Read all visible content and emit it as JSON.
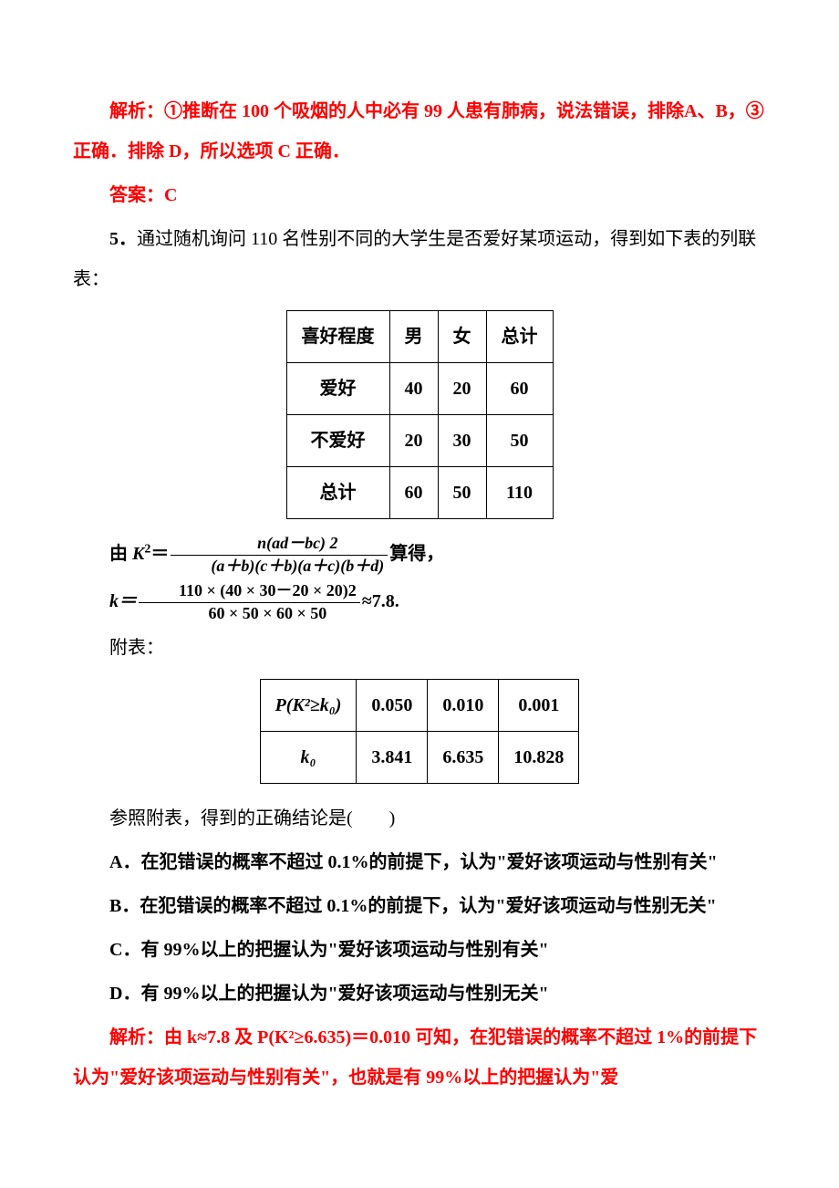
{
  "q4": {
    "explain_prefix": "解析：",
    "explain_text": "①推断在 100 个吸烟的人中必有 99 人患有肺病，说法错误，排除A、B，③正确．排除 D，所以选项 C 正确．",
    "answer_prefix": "答案：",
    "answer_text": "C"
  },
  "q5": {
    "label": "5．",
    "intro": "通过随机询问 110 名性别不同的大学生是否爱好某项运动，得到如下表的列联表：",
    "table1": {
      "rows": [
        [
          "喜好程度",
          "男",
          "女",
          "总计"
        ],
        [
          "爱好",
          "40",
          "20",
          "60"
        ],
        [
          "不爱好",
          "20",
          "30",
          "50"
        ],
        [
          "总计",
          "60",
          "50",
          "110"
        ]
      ]
    },
    "formula1": {
      "lead": "由 ",
      "k": "K",
      "sup2": "2",
      "eq": "＝",
      "num": "n(ad－bc)  2",
      "den": "(a＋b)(c＋b)(a＋c)(b＋d)",
      "tail": "算得，"
    },
    "formula2": {
      "lead": "k＝",
      "num": "110 × (40 × 30－20 × 20)2",
      "den": "60 × 50 × 60 × 50",
      "tail": "≈7.8."
    },
    "attach_label": "附表：",
    "table2": {
      "rows": [
        [
          "P(K²≥k₀)",
          "0.050",
          "0.010",
          "0.001"
        ],
        [
          "k₀",
          "3.841",
          "6.635",
          "10.828"
        ]
      ]
    },
    "prompt": "参照附表，得到的正确结论是(　　)",
    "options": {
      "A": "A．在犯错误的概率不超过 0.1%的前提下，认为\"爱好该项运动与性别有关\"",
      "B": "B．在犯错误的概率不超过 0.1%的前提下，认为\"爱好该项运动与性别无关\"",
      "C": "C．有 99%以上的把握认为\"爱好该项运动与性别有关\"",
      "D": "D．有 99%以上的把握认为\"爱好该项运动与性别无关\""
    },
    "explain_prefix": "解析：",
    "explain_text": "由 k≈7.8 及 P(K²≥6.635)＝0.010 可知，在犯错误的概率不超过 1%的前提下认为\"爱好该项运动与性别有关\"，也就是有 99%以上的把握认为\"爱"
  },
  "colors": {
    "text": "#000000",
    "red": "#ff0000",
    "bg": "#ffffff",
    "border": "#000000"
  },
  "fontsize_body_pt": 15
}
